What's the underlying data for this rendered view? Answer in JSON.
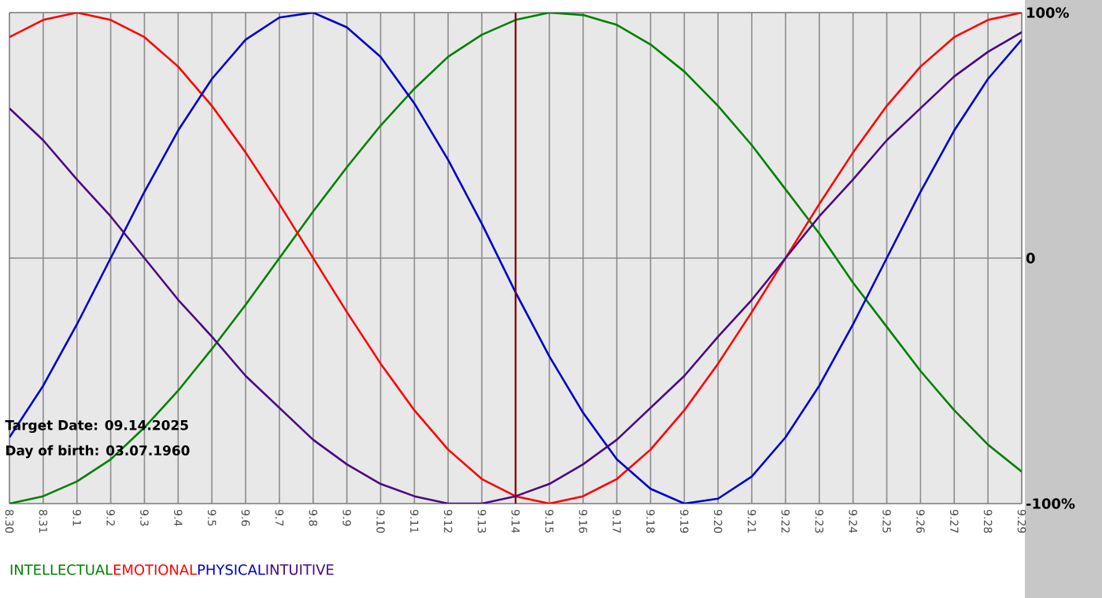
{
  "chart_data": {
    "type": "line",
    "categories": [
      "8.30",
      "8.31",
      "9.1",
      "9.2",
      "9.3",
      "9.4",
      "9.5",
      "9.6",
      "9.7",
      "9.8",
      "9.9",
      "9.10",
      "9.11",
      "9.12",
      "9.13",
      "9.14",
      "9.15",
      "9.16",
      "9.17",
      "9.18",
      "9.19",
      "9.20",
      "9.21",
      "9.22",
      "9.23",
      "9.24",
      "9.25",
      "9.26",
      "9.27",
      "9.28",
      "9.29"
    ],
    "series": [
      {
        "name": "INTELLECTUAL",
        "color": "#008000",
        "values": [
          -100,
          -97,
          -91,
          -82,
          -69,
          -54,
          -37,
          -19,
          0,
          19,
          37,
          54,
          69,
          82,
          91,
          97,
          100,
          99,
          95,
          87,
          76,
          62,
          46,
          28,
          10,
          -10,
          -28,
          -46,
          -62,
          -76,
          -87
        ]
      },
      {
        "name": "EMOTIONAL",
        "color": "#ff0000",
        "values": [
          90,
          97,
          100,
          97,
          90,
          78,
          62,
          43,
          22,
          0,
          -22,
          -43,
          -62,
          -78,
          -90,
          -97,
          -100,
          -97,
          -90,
          -78,
          -62,
          -43,
          -22,
          0,
          22,
          43,
          62,
          78,
          90,
          97,
          100
        ]
      },
      {
        "name": "PHYSICAL",
        "color": "#0000cc",
        "values": [
          -73,
          -52,
          -27,
          0,
          27,
          52,
          73,
          89,
          98,
          100,
          94,
          82,
          63,
          40,
          14,
          -14,
          -40,
          -63,
          -82,
          -94,
          -100,
          -98,
          -89,
          -73,
          -52,
          -27,
          0,
          27,
          52,
          73,
          89
        ]
      },
      {
        "name": "INTUITIVE",
        "color": "#4b0a82",
        "values": [
          61,
          48,
          32,
          17,
          0,
          -17,
          -32,
          -48,
          -61,
          -74,
          -84,
          -92,
          -97,
          -100,
          -100,
          -97,
          -92,
          -84,
          -74,
          -61,
          -48,
          -32,
          -17,
          0,
          17,
          32,
          48,
          61,
          74,
          84,
          92
        ]
      }
    ],
    "ylim": [
      -100,
      100
    ],
    "yticks": [
      {
        "value": -100,
        "label": "-100%"
      },
      0,
      {
        "value": 100,
        "label": "100%"
      }
    ],
    "grid": true,
    "legend": "bottom left",
    "marker": "none",
    "line_style": "solid",
    "ref_lines": [
      {
        "axis": "x",
        "value": "9.14",
        "color": "#800000"
      }
    ],
    "annotations": [
      "Target Date: 09.14.2025",
      "Day of birth: 03.07.1960"
    ]
  }
}
